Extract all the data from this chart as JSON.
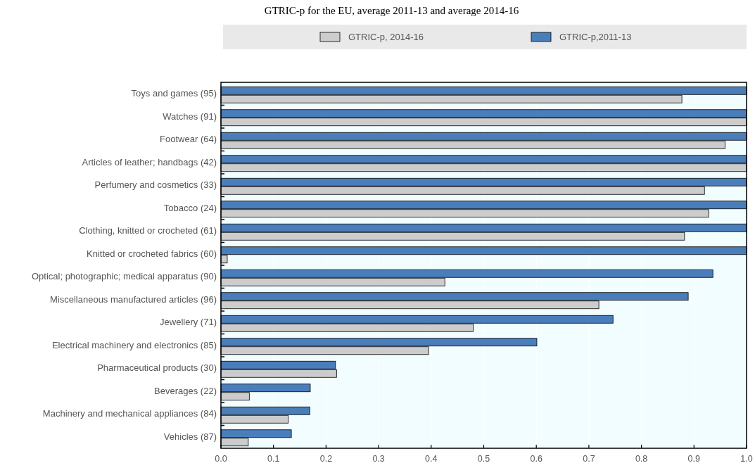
{
  "chart_data": {
    "type": "bar",
    "orientation": "horizontal",
    "title": "GTRIC-p for the EU, average 2011-13 and average 2014-16",
    "categories": [
      "Toys and games (95)",
      "Watches (91)",
      "Footwear (64)",
      "Articles of leather; handbags (42)",
      "Perfumery and cosmetics (33)",
      "Tobacco (24)",
      "Clothing, knitted or crocheted (61)",
      "Knitted or crocheted fabrics (60)",
      "Optical; photographic; medical apparatus (90)",
      "Miscellaneous manufactured articles (96)",
      "Jewellery (71)",
      "Electrical machinery and electronics (85)",
      "Pharmaceutical products (30)",
      "Beverages (22)",
      "Machinery and mechanical appliances (84)",
      "Vehicles (87)"
    ],
    "series": [
      {
        "name": "GTRIC-p, 2014-16",
        "color": "#cccccc",
        "values": [
          0.877,
          1.0,
          0.959,
          1.0,
          0.92,
          0.928,
          0.882,
          0.012,
          0.426,
          0.719,
          0.48,
          0.395,
          0.22,
          0.054,
          0.128,
          0.052
        ]
      },
      {
        "name": "GTRIC-p,2011-13",
        "color": "#4a7ebb",
        "values": [
          1.0,
          1.0,
          1.0,
          1.0,
          1.0,
          1.0,
          1.0,
          1.0,
          0.936,
          0.889,
          0.746,
          0.601,
          0.218,
          0.17,
          0.169,
          0.134
        ]
      }
    ],
    "xlim": [
      0,
      1
    ],
    "xticks": [
      {
        "value": 0,
        "label": "0.0"
      },
      0.1,
      0.2,
      0.3,
      0.4,
      0.5,
      0.6,
      0.7,
      0.8,
      0.9,
      {
        "value": 1,
        "label": "1.0"
      }
    ],
    "grid": "x",
    "legend": "top"
  }
}
